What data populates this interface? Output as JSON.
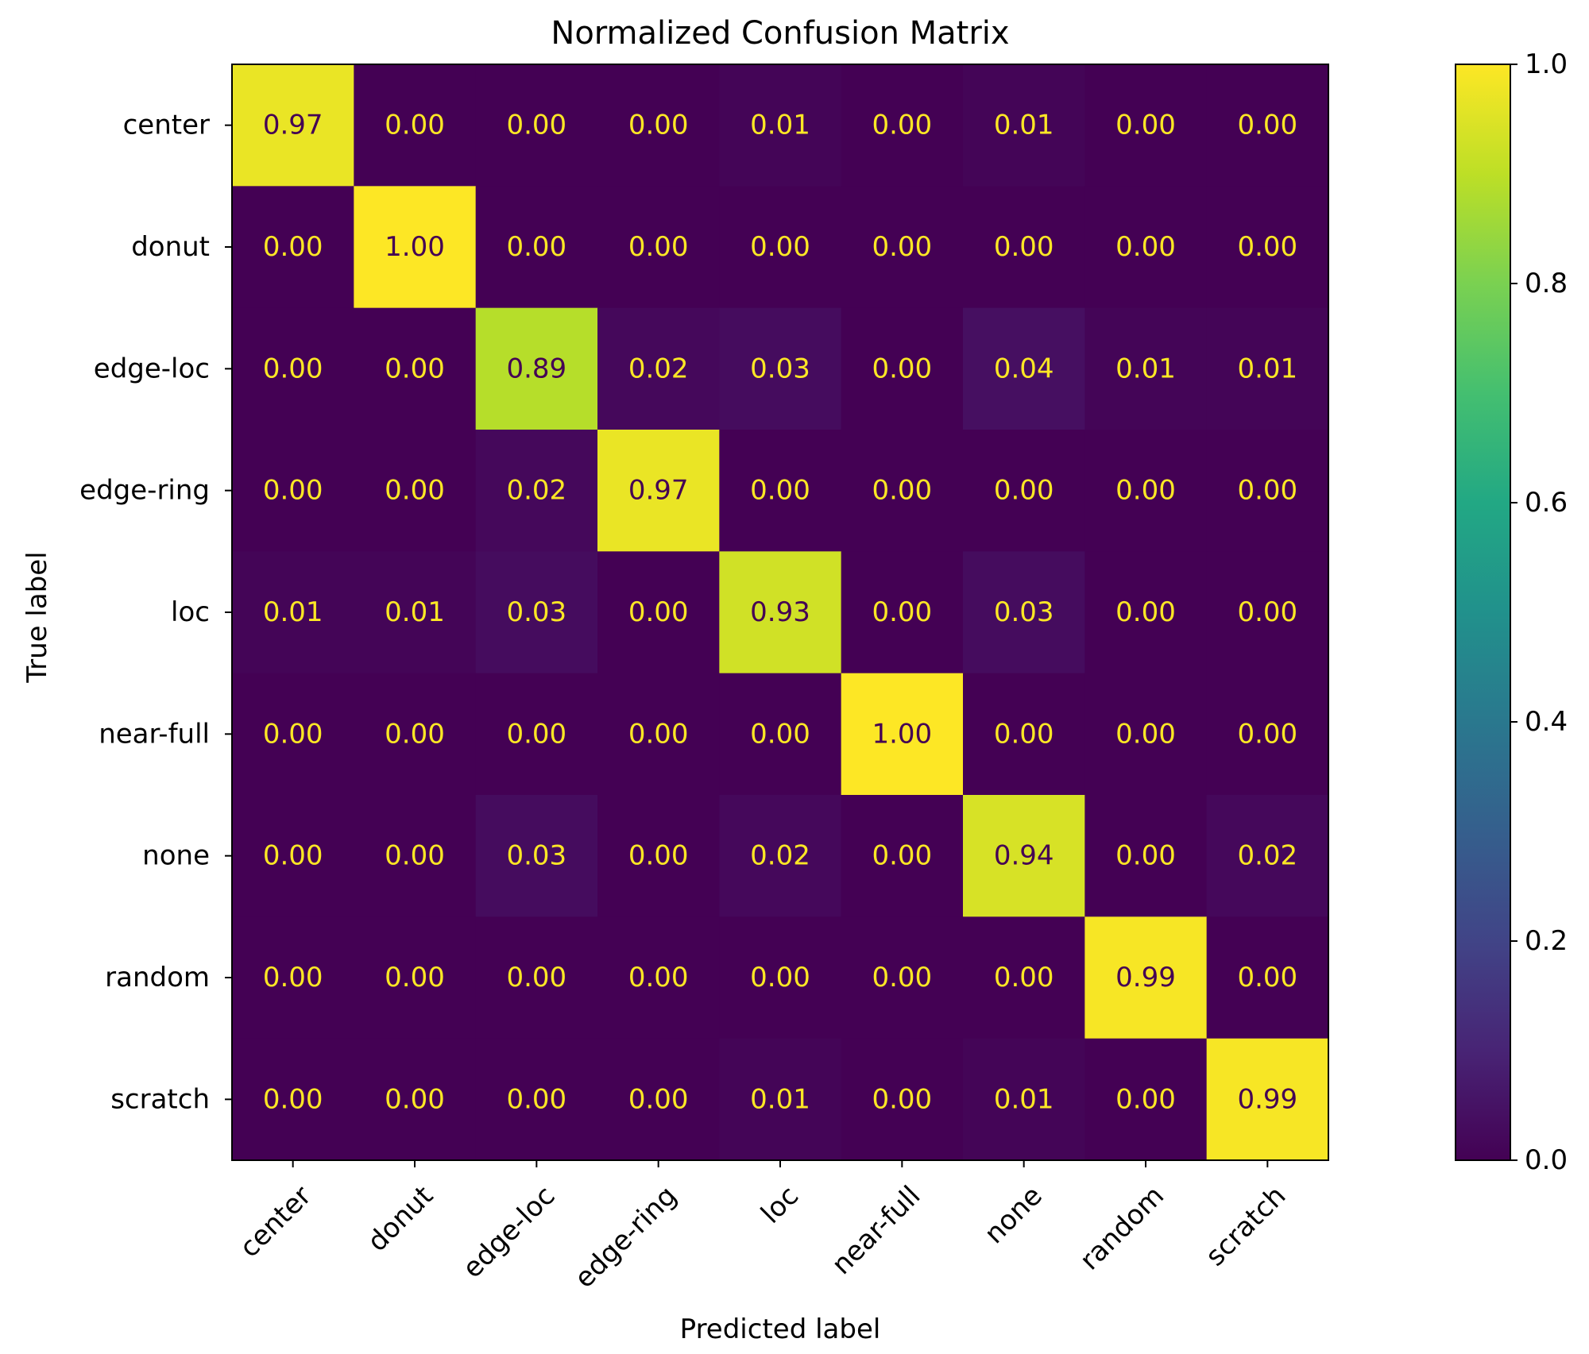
{
  "chart_data": {
    "type": "heatmap",
    "title": "Normalized Confusion Matrix",
    "xlabel": "Predicted label",
    "ylabel": "True label",
    "x_categories": [
      "center",
      "donut",
      "edge-loc",
      "edge-ring",
      "loc",
      "near-full",
      "none",
      "random",
      "scratch"
    ],
    "y_categories": [
      "center",
      "donut",
      "edge-loc",
      "edge-ring",
      "loc",
      "near-full",
      "none",
      "random",
      "scratch"
    ],
    "values": [
      [
        0.97,
        0.0,
        0.0,
        0.0,
        0.01,
        0.0,
        0.01,
        0.0,
        0.0
      ],
      [
        0.0,
        1.0,
        0.0,
        0.0,
        0.0,
        0.0,
        0.0,
        0.0,
        0.0
      ],
      [
        0.0,
        0.0,
        0.89,
        0.02,
        0.03,
        0.0,
        0.04,
        0.01,
        0.01
      ],
      [
        0.0,
        0.0,
        0.02,
        0.97,
        0.0,
        0.0,
        0.0,
        0.0,
        0.0
      ],
      [
        0.01,
        0.01,
        0.03,
        0.0,
        0.93,
        0.0,
        0.03,
        0.0,
        0.0
      ],
      [
        0.0,
        0.0,
        0.0,
        0.0,
        0.0,
        1.0,
        0.0,
        0.0,
        0.0
      ],
      [
        0.0,
        0.0,
        0.03,
        0.0,
        0.02,
        0.0,
        0.94,
        0.0,
        0.02
      ],
      [
        0.0,
        0.0,
        0.0,
        0.0,
        0.0,
        0.0,
        0.0,
        0.99,
        0.0
      ],
      [
        0.0,
        0.0,
        0.0,
        0.0,
        0.01,
        0.0,
        0.01,
        0.0,
        0.99
      ]
    ],
    "value_format_decimals": 2,
    "colormap": "viridis",
    "clim": [
      0.0,
      1.0
    ],
    "colorbar_ticks": [
      "0.0",
      "0.2",
      "0.4",
      "0.6",
      "0.8",
      "1.0"
    ],
    "colors": {
      "viridis_low": "#440154",
      "viridis_high": "#fde725",
      "text_on_dark": "#fde725",
      "text_on_light": "#440154"
    }
  }
}
